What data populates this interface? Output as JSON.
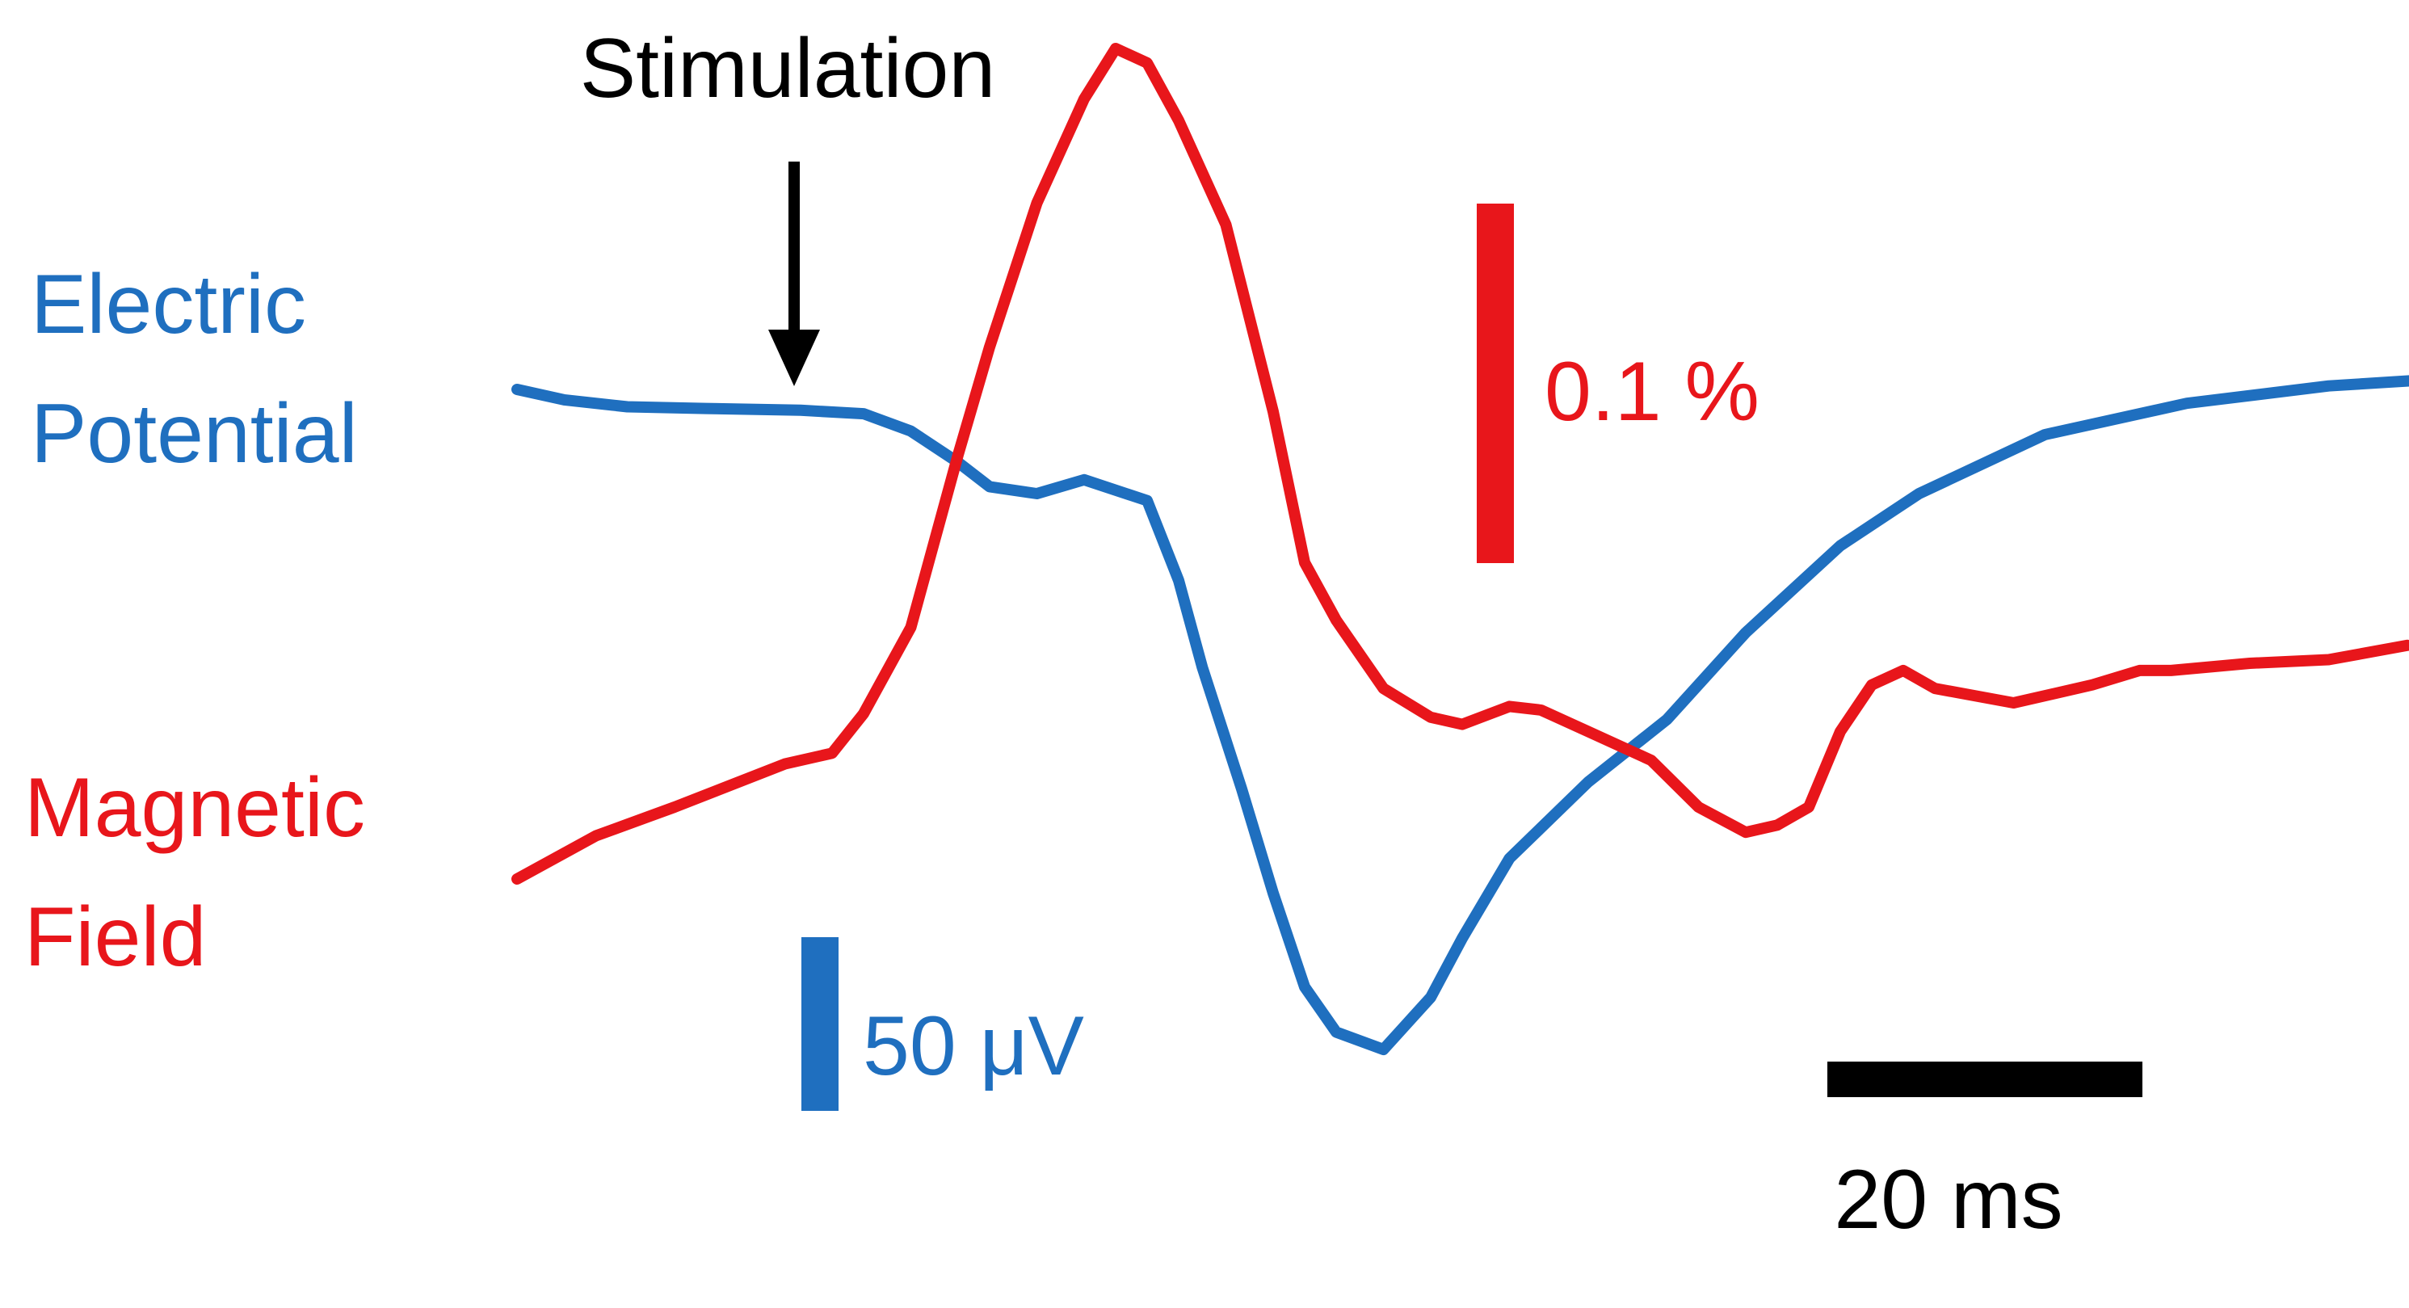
{
  "labels": {
    "stimulation": "Stimulation",
    "electric_line1": "Electric",
    "electric_line2": "Potential",
    "magnetic_line1": "Magnetic",
    "magnetic_line2": "Field",
    "scale_magnetic": "0.1 %",
    "scale_electric": "50 μV",
    "scale_time": "20 ms"
  },
  "colors": {
    "electric": "#1f6fbf",
    "magnetic": "#e8161b",
    "text": "#000000"
  },
  "chart_data": {
    "type": "line",
    "title": "",
    "xlabel": "",
    "ylabel": "",
    "x_unit": "ms",
    "grid": false,
    "stimulation_time": 15,
    "scale_bars": {
      "time": 20,
      "electric": 50,
      "magnetic": 0.1
    },
    "series": [
      {
        "name": "Electric Potential",
        "unit": "μV",
        "x": [
          0,
          3,
          7,
          12,
          18,
          22,
          25,
          28,
          30,
          33,
          36,
          40,
          42,
          43.5,
          46,
          48,
          50,
          52,
          55,
          58,
          60,
          63,
          68,
          73,
          78,
          84,
          89,
          97,
          106,
          115,
          122,
          130
        ],
        "y": [
          0,
          -3,
          -5,
          -5.5,
          -6,
          -7,
          -12,
          -21,
          -28,
          -30,
          -26,
          -32,
          -55,
          -80,
          -115,
          -145,
          -172,
          -185,
          -190,
          -175,
          -158,
          -135,
          -113,
          -95,
          -70,
          -45,
          -30,
          -13,
          -4,
          1,
          3,
          4
        ]
      },
      {
        "name": "Magnetic Field",
        "unit": "%",
        "x": [
          0,
          5,
          10,
          17,
          20,
          22,
          25,
          28,
          30,
          33,
          36,
          38,
          40,
          42,
          45,
          48,
          50,
          52,
          55,
          58,
          60,
          63,
          65,
          68,
          72,
          75,
          78,
          80,
          82,
          84,
          86,
          88,
          90,
          95,
          100,
          103,
          105,
          110,
          115,
          120
        ],
        "y": [
          0,
          0.012,
          0.02,
          0.032,
          0.035,
          0.046,
          0.07,
          0.118,
          0.148,
          0.188,
          0.217,
          0.231,
          0.227,
          0.211,
          0.182,
          0.13,
          0.088,
          0.072,
          0.053,
          0.045,
          0.043,
          0.048,
          0.047,
          0.041,
          0.033,
          0.02,
          0.013,
          0.015,
          0.02,
          0.041,
          0.054,
          0.058,
          0.053,
          0.049,
          0.054,
          0.058,
          0.058,
          0.06,
          0.061,
          0.065
        ]
      }
    ]
  }
}
